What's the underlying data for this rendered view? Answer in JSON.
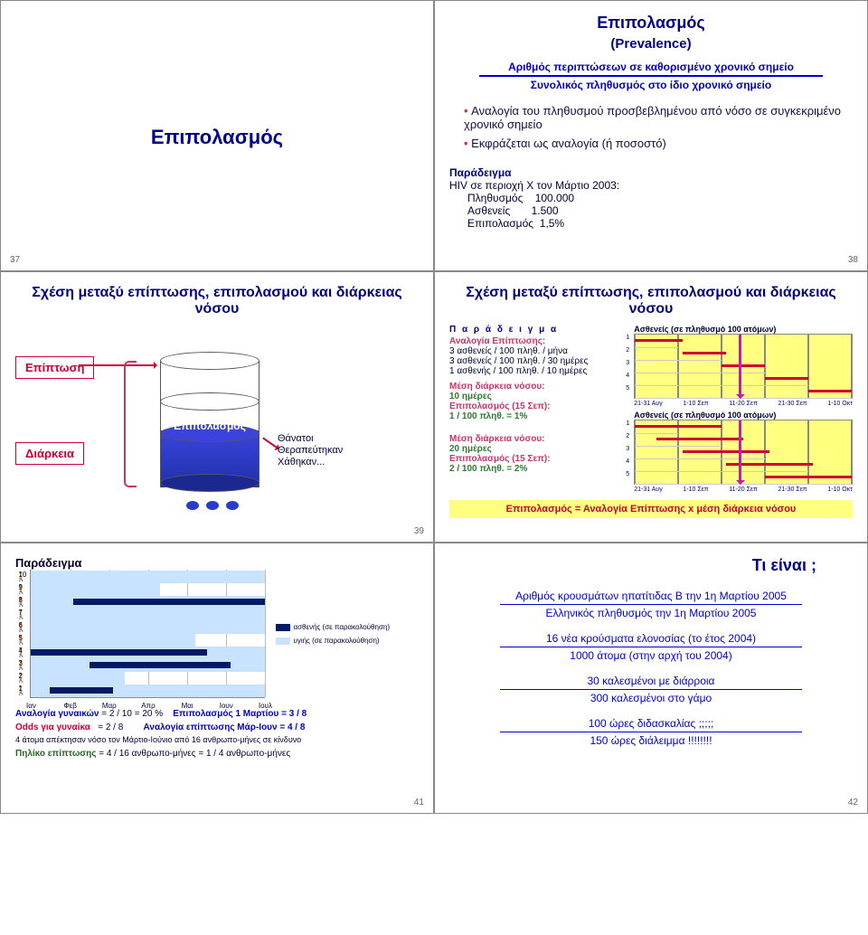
{
  "slide37": {
    "title": "Επιπολασμός",
    "num": "37"
  },
  "slide38": {
    "title": "Επιπολασμός",
    "subtitle": "(Prevalence)",
    "frac_top": "Αριθμός περιπτώσεων σε καθορισμένο χρονικό σημείο",
    "frac_bot": "Συνολικός πληθυσμός στο ίδιο χρονικό σημείο",
    "b1": "Αναλογία του πληθυσμού προσβεβλημένου από νόσο σε συγκεκριμένο χρονικό σημείο",
    "b2": "Εκφράζεται ως αναλογία (ή ποσοστό)",
    "ex_title": "Παράδειγμα",
    "ex_l1": "HIV σε περιοχή Χ τον Μάρτιο 2003:",
    "ex_r1a": "Πληθυσμός",
    "ex_r1b": "100.000",
    "ex_r2a": "Ασθενείς",
    "ex_r2b": "1.500",
    "ex_r3a": "Επιπολασμός",
    "ex_r3b": "1,5%",
    "num": "38"
  },
  "slide39": {
    "hdr": "Σχέση μεταξύ επίπτωσης, επιπολασμού και διάρκειας νόσου",
    "lbl_inc": "Επίπτωση",
    "lbl_dur": "Διάρκεια",
    "lbl_prev": "Επιπολασμός",
    "deaths": "Θάνατοι\nΘεραπεύτηκαν\nΧάθηκαν...",
    "num": "39"
  },
  "slide40": {
    "hdr": "Σχέση μεταξύ επίπτωσης, επιπολασμού και διάρκειας νόσου",
    "ph": "Π α ρ ά δ ε ι γ μ α",
    "l1": "Αναλογία Επίπτωσης:",
    "l1a": "3 ασθενείς / 100 πληθ. / μήνα",
    "l1b": "3 ασθενείς / 100 πληθ. / 30 ημέρες",
    "l1c": "1 ασθενής / 100 πληθ. / 10 ημέρες",
    "l2": "Μέση διάρκεια νόσου:",
    "l2v": "10 ημέρες",
    "l3": "Επιπολασμός (15 Σεπ):",
    "l3v": "1 / 100 πληθ. = 1%",
    "l4": "Μέση διάρκεια νόσου:",
    "l4v": "20 ημέρες",
    "l5": "Επιπολασμός (15 Σεπ):",
    "l5v": "2 / 100 πληθ. = 2%",
    "gtitle": "Ασθενείς (σε πληθυσμό 100 ατόμων)",
    "xlabels": [
      "21-31 Αυγ",
      "1-10 Σεπ",
      "11-20 Σεπ",
      "21-30 Σεπ",
      "1-10 Οκτ"
    ],
    "gantt1_bars": [
      {
        "row": 1,
        "start": 0,
        "len": 22
      },
      {
        "row": 2,
        "start": 22,
        "len": 20
      },
      {
        "row": 3,
        "start": 40,
        "len": 20
      },
      {
        "row": 4,
        "start": 60,
        "len": 20
      },
      {
        "row": 5,
        "start": 80,
        "len": 20
      }
    ],
    "gantt2_bars": [
      {
        "row": 1,
        "start": 0,
        "len": 40
      },
      {
        "row": 2,
        "start": 10,
        "len": 40
      },
      {
        "row": 3,
        "start": 22,
        "len": 40
      },
      {
        "row": 4,
        "start": 42,
        "len": 40
      },
      {
        "row": 5,
        "start": 60,
        "len": 40
      }
    ],
    "vline_pct": 48,
    "foot": "Επιπολασμός = Αναλογία Επίπτωσης x μέση διάρκεια νόσου",
    "num": ""
  },
  "slide41": {
    "title": "Παράδειγμα",
    "people_colors": [
      "pink",
      "pink",
      "blue",
      "blue",
      "pink",
      "blue",
      "pink",
      "blue",
      "pink",
      "blue"
    ],
    "months": [
      "Ιαν",
      "Φεβ",
      "Μαρ",
      "Απρ",
      "Μαι",
      "Ιουν",
      "Ιουλ"
    ],
    "tracks": [
      {
        "bg_end": 100,
        "fg_start": 8,
        "fg_end": 35
      },
      {
        "bg_end": 40,
        "fg_start": 0,
        "fg_end": 0
      },
      {
        "bg_end": 100,
        "fg_start": 25,
        "fg_end": 85
      },
      {
        "bg_end": 100,
        "fg_start": 0,
        "fg_end": 75
      },
      {
        "bg_end": 70,
        "fg_start": 0,
        "fg_end": 0
      },
      {
        "bg_end": 100,
        "fg_start": 0,
        "fg_end": 0
      },
      {
        "bg_end": 100,
        "fg_start": 0,
        "fg_end": 0
      },
      {
        "bg_end": 100,
        "fg_start": 18,
        "fg_end": 100
      },
      {
        "bg_end": 55,
        "fg_start": 0,
        "fg_end": 0
      },
      {
        "bg_end": 100,
        "fg_start": 0,
        "fg_end": 0
      }
    ],
    "legend_a": "ασθενής (σε παρακολούθηση)",
    "legend_b": "υγιής (σε παρακολούθηση)",
    "n1a": "Αναλογία γυναικών",
    "n1b": "= 2 / 10 = 20 %",
    "n1c": "Επιπολασμός 1 Μαρτίου  = 3 / 8",
    "n2a": "Odds για γυναίκα",
    "n2b": "= 2 / 8",
    "n2c": "Αναλογία επίπτωσης Μάρ-Ιουν  = 4 / 8",
    "n3": "4 άτομα απέκτησαν νόσο τον Μάρτιο-Ιούνιο από 16 ανθρωπο-μήνες σε κίνδυνο",
    "n4a": "Πηλίκο επίπτωσης",
    "n4b": "= 4 / 16 ανθρωπο-μήνες = 1 / 4 ανθρωπο-μήνες",
    "num": "41",
    "colors": {
      "bg": "#c7e3ff",
      "fg": "#001a66"
    }
  },
  "slide42": {
    "title": "Τι είναι ;",
    "q1t": "Αριθμός κρουσμάτων ηπατίτιδας Β την 1η Μαρτίου 2005",
    "q1b": "Ελληνικός πληθυσμός την 1η Μαρτίου 2005",
    "q2t": "16 νέα κρούσματα ελονοσίας (το έτος 2004)",
    "q2b": "1000 άτομα (στην αρχή του 2004)",
    "q3t": "30 καλεσμένοι με διάρροια",
    "q3b": "300 καλεσμένοι στο γάμο",
    "q4t": "100 ώρες διδασκαλίας ;;;;;",
    "q4b": "150 ώρες διάλειμμα !!!!!!!!",
    "num": "42"
  }
}
